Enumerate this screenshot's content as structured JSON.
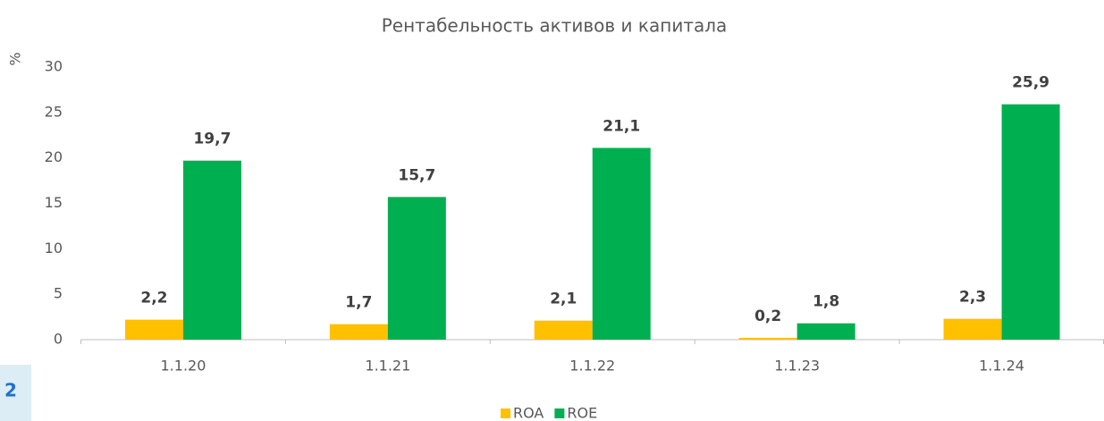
{
  "chart_data": {
    "type": "bar",
    "title": "Рентабельность активов и капитала",
    "y_label": "%",
    "categories": [
      "1.1.20",
      "1.1.21",
      "1.1.22",
      "1.1.23",
      "1.1.24"
    ],
    "series": [
      {
        "name": "ROA",
        "color": "#FFC000",
        "values": [
          2.2,
          1.7,
          2.1,
          0.2,
          2.3
        ],
        "value_labels": [
          "2,2",
          "1,7",
          "2,1",
          "0,2",
          "2,3"
        ]
      },
      {
        "name": "ROE",
        "color": "#00B050",
        "values": [
          19.7,
          15.7,
          21.1,
          1.8,
          25.9
        ],
        "value_labels": [
          "19,7",
          "15,7",
          "21,1",
          "1,8",
          "25,9"
        ]
      }
    ],
    "ylim": [
      0,
      30
    ],
    "yticks": [
      0,
      5,
      10,
      15,
      20,
      25,
      30
    ],
    "grid": false,
    "legend": "bottom"
  },
  "fragment": "2"
}
